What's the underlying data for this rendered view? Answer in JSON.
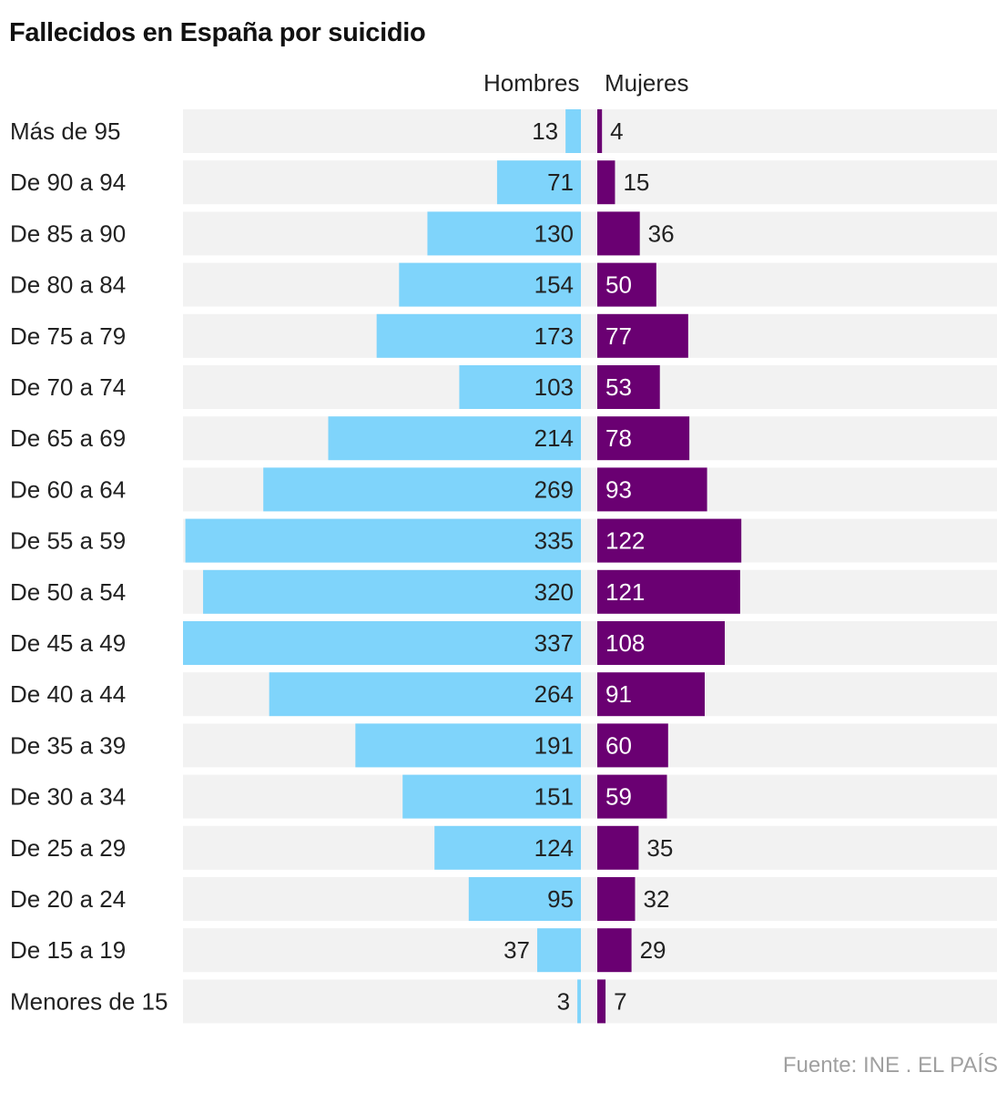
{
  "chart_data": {
    "type": "bar",
    "title": "Fallecidos en España por suicidio",
    "categories": [
      "Más de 95",
      "De 90 a 94",
      "De 85 a 90",
      "De 80 a 84",
      "De 75 a 79",
      "De 70 a 74",
      "De 65 a 69",
      "De 60 a 64",
      "De 55 a 59",
      "De 50 a 54",
      "De 45 a 49",
      "De 40 a 44",
      "De 35 a 39",
      "De 30 a 34",
      "De 25 a 29",
      "De 20 a 24",
      "De 15 a 19",
      "Menores de 15"
    ],
    "series": [
      {
        "name": "Hombres",
        "color": "#7fd4fb",
        "values": [
          13,
          71,
          130,
          154,
          173,
          103,
          214,
          269,
          335,
          320,
          337,
          264,
          191,
          151,
          124,
          95,
          37,
          3
        ]
      },
      {
        "name": "Mujeres",
        "color": "#6a0072",
        "values": [
          4,
          15,
          36,
          50,
          77,
          53,
          78,
          93,
          122,
          121,
          108,
          91,
          60,
          59,
          35,
          32,
          29,
          7
        ]
      }
    ],
    "background_band_color": "#f2f2f2",
    "source": "Fuente: INE . EL PAÍS"
  }
}
